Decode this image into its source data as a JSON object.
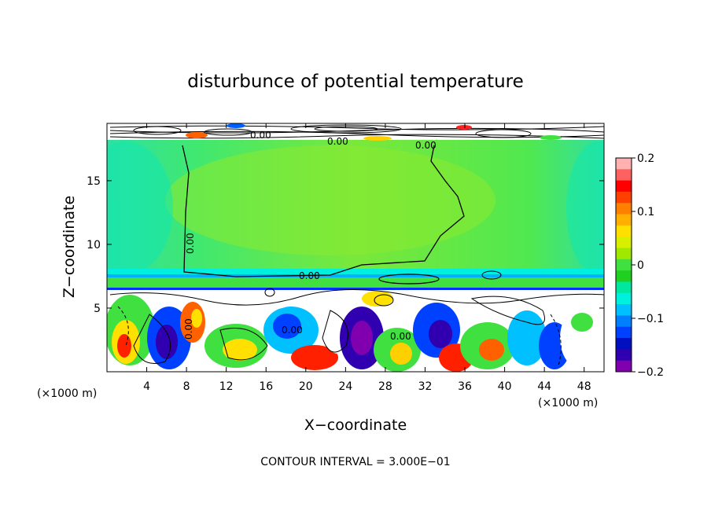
{
  "chart_data": {
    "type": "heatmap",
    "title": "disturbunce of potential temperature",
    "xlabel": "X−coordinate",
    "ylabel": "Z−coordinate",
    "x_unit_left": "(×1000 m)",
    "x_unit_right": "(×1000 m)",
    "footer": "CONTOUR INTERVAL = 3.000E−01",
    "xlim": [
      0,
      50
    ],
    "ylim": [
      0,
      19.5
    ],
    "x_ticks": [
      4,
      8,
      12,
      16,
      20,
      24,
      28,
      32,
      36,
      40,
      44,
      48
    ],
    "x_tick_labels": [
      "4",
      "8",
      "12",
      "16",
      "20",
      "24",
      "28",
      "32",
      "36",
      "40",
      "44",
      "48"
    ],
    "y_ticks": [
      5,
      10,
      15
    ],
    "y_tick_labels": [
      "5",
      "10",
      "15"
    ],
    "colorbar": {
      "range": [
        -0.2,
        0.2
      ],
      "tick_values": [
        0.2,
        0.1,
        0,
        -0.1,
        -0.2
      ],
      "tick_labels": [
        "0.2",
        "0.1",
        "0",
        "−0.1",
        "−0.2"
      ],
      "colors": [
        "#ffb0b0",
        "#ff6060",
        "#ff0000",
        "#ff4000",
        "#ff8000",
        "#ffb000",
        "#ffe000",
        "#d8f000",
        "#a0e800",
        "#40e040",
        "#20d020",
        "#00e8a0",
        "#00f0e0",
        "#00c0ff",
        "#0080ff",
        "#0040ff",
        "#0010c0",
        "#3000b0",
        "#8000b0"
      ]
    },
    "contour_labels": [
      "0.00",
      "0.00",
      "0.00",
      "0.00",
      "0.00",
      "0.00",
      "0.00",
      "0.00"
    ],
    "layers": [
      {
        "z_range": [
          18.2,
          19.5
        ],
        "value_range": [
          -0.2,
          0.2
        ]
      },
      {
        "z_range": [
          8.0,
          18.2
        ],
        "value": 0.0
      },
      {
        "z_range": [
          7.3,
          8.0
        ],
        "value": -0.08
      },
      {
        "z_range": [
          6.5,
          7.3
        ],
        "value": 0.0
      },
      {
        "z_range": [
          0,
          6.5
        ],
        "value_range": [
          -0.2,
          0.2
        ]
      }
    ]
  }
}
